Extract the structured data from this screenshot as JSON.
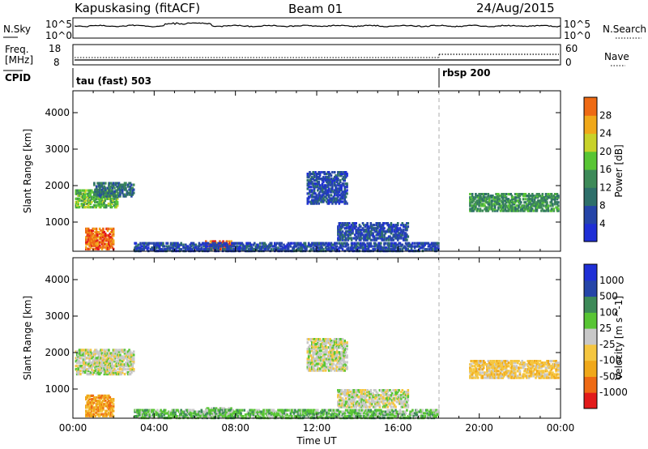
{
  "header": {
    "station": "Kapuskasing (fitACF)",
    "beam": "Beam 01",
    "date": "24/Aug/2015"
  },
  "panels": {
    "nsky_label": "N.Sky",
    "nsky_ticks": [
      "10^5",
      "10^0"
    ],
    "nsearch_label": "N.Search",
    "freq_label_1": "Freq.",
    "freq_label_2": "[MHz]",
    "freq_ticks": [
      "18",
      "8"
    ],
    "nave_label": "Nave",
    "nave_ticks": [
      "60",
      "0"
    ],
    "cpid_label": "CPID",
    "cpid_1": "tau (fast) 503",
    "cpid_2": "rbsp 200"
  },
  "colors": {
    "power": [
      "#1f2fd6",
      "#2545a8",
      "#2e6f6a",
      "#3d8a58",
      "#58c534",
      "#c8d22a",
      "#f0a81a",
      "#ee6a14",
      "#e21a1a"
    ],
    "velocity": [
      "#e21a1a",
      "#ee6a14",
      "#f0a81a",
      "#f5c640",
      "#c8c8c8",
      "#58c534",
      "#3d8a58",
      "#2545a8",
      "#1f2fd6"
    ]
  },
  "chart_data": [
    {
      "type": "heatmap",
      "panel": "power",
      "ylabel": "Slant Range [km]",
      "ylim": [
        200,
        4600
      ],
      "yticks": [
        "1000",
        "2000",
        "3000",
        "4000"
      ],
      "xlim": [
        0,
        24
      ],
      "colorbar_label": "Power [dB]",
      "colorbar_ticks": [
        "4",
        "8",
        "12",
        "16",
        "20",
        "24",
        "28"
      ],
      "colorbar_range": [
        0,
        32
      ],
      "bands": [
        {
          "t0": 0.1,
          "t1": 2.2,
          "r0": 1400,
          "r1": 1900,
          "level": 4
        },
        {
          "t0": 1.0,
          "t1": 3.0,
          "r0": 1700,
          "r1": 2100,
          "level": 2
        },
        {
          "t0": 0.6,
          "t1": 2.0,
          "r0": 250,
          "r1": 850,
          "level": 7
        },
        {
          "t0": 6.5,
          "t1": 7.8,
          "r0": 250,
          "r1": 500,
          "level": 7
        },
        {
          "t0": 11.5,
          "t1": 13.5,
          "r0": 1500,
          "r1": 2400,
          "level": 1
        },
        {
          "t0": 13.0,
          "t1": 16.5,
          "r0": 500,
          "r1": 1000,
          "level": 1
        },
        {
          "t0": 19.5,
          "t1": 23.9,
          "r0": 1300,
          "r1": 1800,
          "level": 3
        },
        {
          "t0": 3.0,
          "t1": 18.0,
          "r0": 200,
          "r1": 450,
          "level": 1
        }
      ]
    },
    {
      "type": "heatmap",
      "panel": "velocity",
      "ylabel": "Slant Range [km]",
      "ylim": [
        200,
        4600
      ],
      "yticks": [
        "1000",
        "2000",
        "3000",
        "4000"
      ],
      "xlim": [
        0,
        24
      ],
      "xlabel": "Time UT",
      "xticks": [
        "00:00",
        "04:00",
        "08:00",
        "12:00",
        "16:00",
        "20:00",
        "00:00"
      ],
      "colorbar_label": "Velocity [m s^-1]",
      "colorbar_ticks": [
        "1000",
        "500",
        "100",
        "25",
        "-25",
        "-100",
        "-500",
        "-1000"
      ],
      "bands": [
        {
          "t0": 0.1,
          "t1": 3.0,
          "r0": 1400,
          "r1": 2100,
          "level": 4
        },
        {
          "t0": 0.6,
          "t1": 2.0,
          "r0": 250,
          "r1": 850,
          "level": 2
        },
        {
          "t0": 6.5,
          "t1": 7.8,
          "r0": 250,
          "r1": 500,
          "level": 5
        },
        {
          "t0": 11.5,
          "t1": 13.5,
          "r0": 1500,
          "r1": 2400,
          "level": 4
        },
        {
          "t0": 13.0,
          "t1": 16.5,
          "r0": 500,
          "r1": 1000,
          "level": 4
        },
        {
          "t0": 19.5,
          "t1": 23.9,
          "r0": 1300,
          "r1": 1800,
          "level": 3
        },
        {
          "t0": 3.0,
          "t1": 18.0,
          "r0": 200,
          "r1": 450,
          "level": 5
        }
      ]
    }
  ]
}
